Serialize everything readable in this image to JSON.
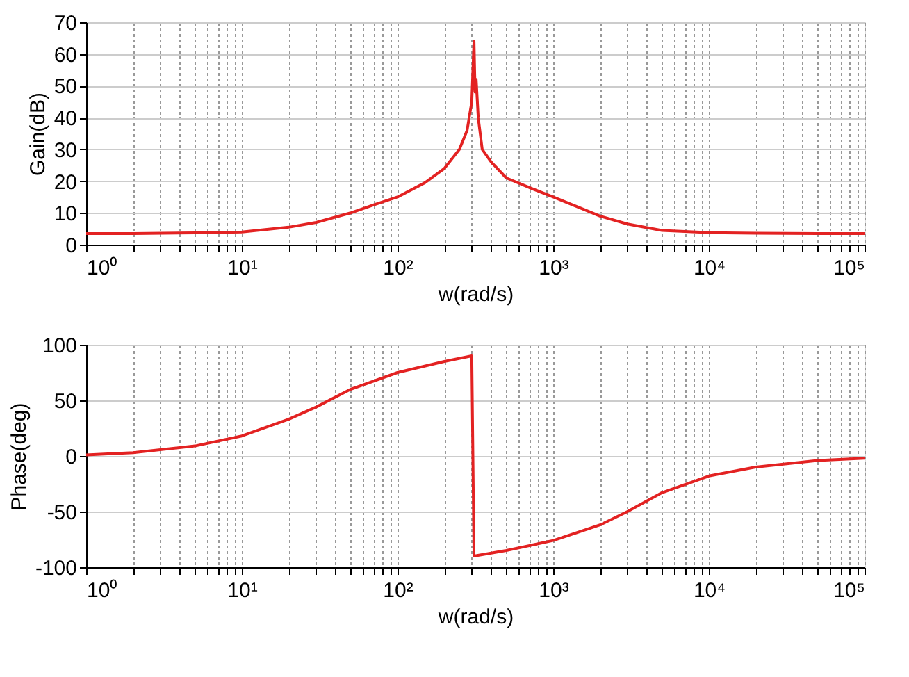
{
  "chart_data": [
    {
      "type": "line",
      "xlabel": "w(rad/s)",
      "ylabel": "Gain(dB)",
      "log": "x",
      "grid": true,
      "line_style": "solid",
      "marker": "none",
      "x": [
        1,
        2,
        5,
        10,
        20,
        30,
        50,
        70,
        100,
        150,
        200,
        250,
        280,
        300,
        310,
        315,
        320,
        330,
        350,
        400,
        500,
        700,
        1000,
        1500,
        2000,
        3000,
        5000,
        10000,
        20000,
        50000,
        100000
      ],
      "series": [
        {
          "color": "#e32222",
          "values": [
            3.5,
            3.5,
            3.7,
            4,
            5.5,
            7,
            10,
            12.5,
            15,
            19.5,
            24,
            30,
            36,
            45,
            64,
            48,
            52,
            40,
            30,
            26,
            21,
            18,
            15,
            11.5,
            9,
            6.5,
            4.5,
            3.8,
            3.6,
            3.5,
            3.5
          ]
        }
      ],
      "xlim": [
        1,
        100000
      ],
      "ylim": [
        0,
        70
      ],
      "yticks": [
        0,
        10,
        20,
        30,
        40,
        50,
        60,
        70
      ],
      "xticks": [
        {
          "value": 1,
          "label": "10⁰"
        },
        {
          "value": 2,
          "label": null
        },
        {
          "value": 3,
          "label": null
        },
        {
          "value": 4,
          "label": null
        },
        {
          "value": 5,
          "label": null
        },
        {
          "value": 6,
          "label": null
        },
        {
          "value": 7,
          "label": null
        },
        {
          "value": 8,
          "label": null
        },
        {
          "value": 9,
          "label": null
        },
        {
          "value": 10,
          "label": "10¹"
        },
        {
          "value": 20,
          "label": null
        },
        {
          "value": 30,
          "label": null
        },
        {
          "value": 40,
          "label": null
        },
        {
          "value": 50,
          "label": null
        },
        {
          "value": 60,
          "label": null
        },
        {
          "value": 70,
          "label": null
        },
        {
          "value": 80,
          "label": null
        },
        {
          "value": 90,
          "label": null
        },
        {
          "value": 100,
          "label": "10²"
        },
        {
          "value": 200,
          "label": null
        },
        {
          "value": 300,
          "label": null
        },
        {
          "value": 400,
          "label": null
        },
        {
          "value": 500,
          "label": null
        },
        {
          "value": 600,
          "label": null
        },
        {
          "value": 700,
          "label": null
        },
        {
          "value": 800,
          "label": null
        },
        {
          "value": 900,
          "label": null
        },
        {
          "value": 1000,
          "label": "10³"
        },
        {
          "value": 2000,
          "label": null
        },
        {
          "value": 3000,
          "label": null
        },
        {
          "value": 4000,
          "label": null
        },
        {
          "value": 5000,
          "label": null
        },
        {
          "value": 6000,
          "label": null
        },
        {
          "value": 7000,
          "label": null
        },
        {
          "value": 8000,
          "label": null
        },
        {
          "value": 9000,
          "label": null
        },
        {
          "value": 10000,
          "label": "10⁴"
        },
        {
          "value": 20000,
          "label": null
        },
        {
          "value": 30000,
          "label": null
        },
        {
          "value": 40000,
          "label": null
        },
        {
          "value": 50000,
          "label": null
        },
        {
          "value": 60000,
          "label": null
        },
        {
          "value": 70000,
          "label": null
        },
        {
          "value": 80000,
          "label": null
        },
        {
          "value": 90000,
          "label": null
        },
        {
          "value": 100000,
          "label": "10⁵"
        }
      ]
    },
    {
      "type": "line",
      "xlabel": "w(rad/s)",
      "ylabel": "Phase(deg)",
      "log": "x",
      "grid": true,
      "line_style": "solid",
      "marker": "none",
      "x": [
        1,
        2,
        5,
        10,
        20,
        30,
        50,
        100,
        200,
        300,
        310,
        500,
        1000,
        2000,
        3000,
        5000,
        10000,
        20000,
        50000,
        100000
      ],
      "series": [
        {
          "color": "#e32222",
          "values": [
            1,
            3,
            9,
            18,
            33,
            44,
            60,
            75,
            85,
            90,
            -90,
            -85,
            -76,
            -62,
            -50,
            -33,
            -18,
            -10,
            -4,
            -2
          ]
        }
      ],
      "xlim": [
        1,
        100000
      ],
      "ylim": [
        -100,
        100
      ],
      "yticks": [
        -100,
        -50,
        0,
        50,
        100
      ],
      "xticks": [
        {
          "value": 1,
          "label": "10⁰"
        },
        {
          "value": 2,
          "label": null
        },
        {
          "value": 3,
          "label": null
        },
        {
          "value": 4,
          "label": null
        },
        {
          "value": 5,
          "label": null
        },
        {
          "value": 6,
          "label": null
        },
        {
          "value": 7,
          "label": null
        },
        {
          "value": 8,
          "label": null
        },
        {
          "value": 9,
          "label": null
        },
        {
          "value": 10,
          "label": "10¹"
        },
        {
          "value": 20,
          "label": null
        },
        {
          "value": 30,
          "label": null
        },
        {
          "value": 40,
          "label": null
        },
        {
          "value": 50,
          "label": null
        },
        {
          "value": 60,
          "label": null
        },
        {
          "value": 70,
          "label": null
        },
        {
          "value": 80,
          "label": null
        },
        {
          "value": 90,
          "label": null
        },
        {
          "value": 100,
          "label": "10²"
        },
        {
          "value": 200,
          "label": null
        },
        {
          "value": 300,
          "label": null
        },
        {
          "value": 400,
          "label": null
        },
        {
          "value": 500,
          "label": null
        },
        {
          "value": 600,
          "label": null
        },
        {
          "value": 700,
          "label": null
        },
        {
          "value": 800,
          "label": null
        },
        {
          "value": 900,
          "label": null
        },
        {
          "value": 1000,
          "label": "10³"
        },
        {
          "value": 2000,
          "label": null
        },
        {
          "value": 3000,
          "label": null
        },
        {
          "value": 4000,
          "label": null
        },
        {
          "value": 5000,
          "label": null
        },
        {
          "value": 6000,
          "label": null
        },
        {
          "value": 7000,
          "label": null
        },
        {
          "value": 8000,
          "label": null
        },
        {
          "value": 9000,
          "label": null
        },
        {
          "value": 10000,
          "label": "10⁴"
        },
        {
          "value": 20000,
          "label": null
        },
        {
          "value": 30000,
          "label": null
        },
        {
          "value": 40000,
          "label": null
        },
        {
          "value": 50000,
          "label": null
        },
        {
          "value": 60000,
          "label": null
        },
        {
          "value": 70000,
          "label": null
        },
        {
          "value": 80000,
          "label": null
        },
        {
          "value": 90000,
          "label": null
        },
        {
          "value": 100000,
          "label": "10⁵"
        }
      ]
    }
  ]
}
